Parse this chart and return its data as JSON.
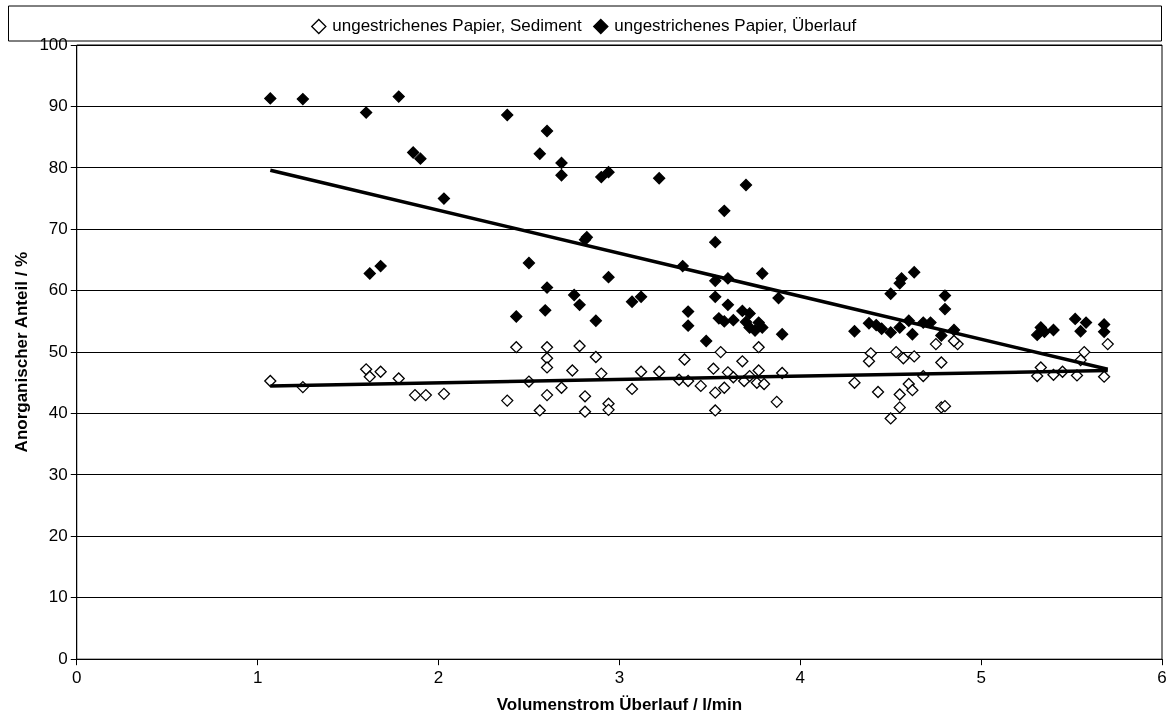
{
  "chart_data": {
    "type": "scatter",
    "xlabel": "Volumenstrom Überlauf / l/min",
    "ylabel": "Anorganischer Anteil / %",
    "xlim": [
      0,
      6
    ],
    "xticks": [
      0,
      1,
      2,
      3,
      4,
      5,
      6
    ],
    "ylim": [
      0,
      100
    ],
    "yticks": [
      0,
      10,
      20,
      30,
      40,
      50,
      60,
      70,
      80,
      90,
      100
    ],
    "grid": "y",
    "legend": "top",
    "marker": "diamond",
    "series": [
      {
        "name": "ungestrichenes Papier, Sediment",
        "color": "#ffffff",
        "x": [
          1.07,
          1.25,
          1.6,
          1.62,
          1.68,
          1.78,
          1.87,
          1.93,
          2.03,
          2.38,
          2.43,
          2.5,
          2.56,
          2.6,
          2.6,
          2.6,
          2.6,
          2.68,
          2.74,
          2.78,
          2.81,
          2.81,
          2.87,
          2.9,
          2.94,
          2.94,
          3.07,
          3.12,
          3.22,
          3.33,
          3.36,
          3.38,
          3.45,
          3.52,
          3.53,
          3.53,
          3.56,
          3.58,
          3.6,
          3.63,
          3.68,
          3.69,
          3.72,
          3.76,
          3.77,
          3.77,
          3.8,
          3.87,
          3.9,
          4.3,
          4.39,
          4.38,
          4.43,
          4.5,
          4.53,
          4.55,
          4.55,
          4.57,
          4.6,
          4.62,
          4.63,
          4.68,
          4.75,
          4.78,
          4.78,
          4.8,
          4.87,
          4.85,
          5.31,
          5.33,
          5.4,
          5.45,
          5.53,
          5.55,
          5.57,
          5.68,
          5.7
        ],
        "values": [
          45.3,
          44.3,
          47.2,
          46,
          46.8,
          45.7,
          43,
          43,
          43.2,
          42.1,
          50.8,
          45.2,
          40.5,
          50.8,
          49,
          47.5,
          43,
          44.2,
          47,
          51,
          42.8,
          40.3,
          49.2,
          46.5,
          41.6,
          40.6,
          44,
          46.8,
          46.8,
          45.5,
          48.8,
          45.3,
          44.5,
          47.3,
          43.4,
          40.5,
          50,
          44.2,
          46.7,
          45.9,
          48.5,
          45.3,
          46.1,
          45,
          50.8,
          47,
          44.8,
          41.9,
          46.6,
          45,
          49.8,
          48.5,
          43.5,
          39.2,
          50,
          41,
          43.1,
          49,
          44.8,
          43.8,
          49.3,
          46.1,
          51.3,
          48.3,
          41,
          41.2,
          51.3,
          51.8,
          46.1,
          47.5,
          46.3,
          46.8,
          46.2,
          48.7,
          50,
          46,
          51.3
        ]
      },
      {
        "name": "ungestrichenes Papier, Überlauf",
        "color": "#000000",
        "x": [
          1.07,
          1.25,
          1.6,
          1.78,
          1.86,
          1.9,
          2.03,
          1.62,
          1.68,
          2.38,
          2.6,
          2.56,
          2.68,
          2.68,
          2.9,
          2.94,
          3.22,
          2.81,
          2.82,
          2.5,
          2.6,
          2.59,
          2.43,
          2.75,
          2.78,
          2.87,
          2.94,
          3.07,
          3.12,
          3.35,
          3.38,
          3.38,
          3.48,
          3.53,
          3.53,
          3.53,
          3.58,
          3.6,
          3.55,
          3.58,
          3.6,
          3.63,
          3.7,
          3.68,
          3.7,
          3.72,
          3.72,
          3.75,
          3.77,
          3.79,
          3.79,
          3.88,
          3.9,
          4.3,
          4.38,
          4.42,
          4.45,
          4.5,
          4.5,
          4.55,
          4.56,
          4.55,
          4.6,
          4.62,
          4.63,
          4.68,
          4.72,
          4.78,
          4.8,
          4.8,
          4.85,
          5.31,
          5.33,
          5.35,
          5.4,
          5.52,
          5.55,
          5.58,
          5.68,
          5.68
        ],
        "values": [
          91.3,
          91.2,
          89,
          91.6,
          82.5,
          81.5,
          75,
          62.8,
          64,
          88.6,
          86,
          82.3,
          80.8,
          78.8,
          78.5,
          79.3,
          78.3,
          68.3,
          68.7,
          64.5,
          60.5,
          56.8,
          55.8,
          59.3,
          57.7,
          55.1,
          62.2,
          58.2,
          59,
          64,
          54.3,
          56.6,
          51.8,
          67.9,
          61.6,
          59,
          73,
          62,
          55.5,
          55,
          57.7,
          55.2,
          77.2,
          56.7,
          54.9,
          56.3,
          54,
          53.5,
          54.8,
          54,
          62.8,
          58.8,
          52.9,
          53.4,
          54.7,
          54.4,
          53.8,
          53.2,
          59.5,
          61.2,
          62,
          54,
          55.1,
          52.9,
          63,
          54.8,
          54.8,
          52.7,
          59.2,
          57,
          53.6,
          52.8,
          54,
          53.3,
          53.6,
          55.4,
          53.4,
          54.8,
          53.3,
          54.5
        ]
      },
      {
        "type": "line",
        "marker": "none",
        "color": "#000000",
        "x": [
          1.07,
          5.7
        ],
        "values": [
          44.5,
          47
        ]
      },
      {
        "type": "line",
        "marker": "none",
        "color": "#000000",
        "x": [
          1.07,
          5.7
        ],
        "values": [
          79.6,
          47.2
        ]
      }
    ]
  }
}
